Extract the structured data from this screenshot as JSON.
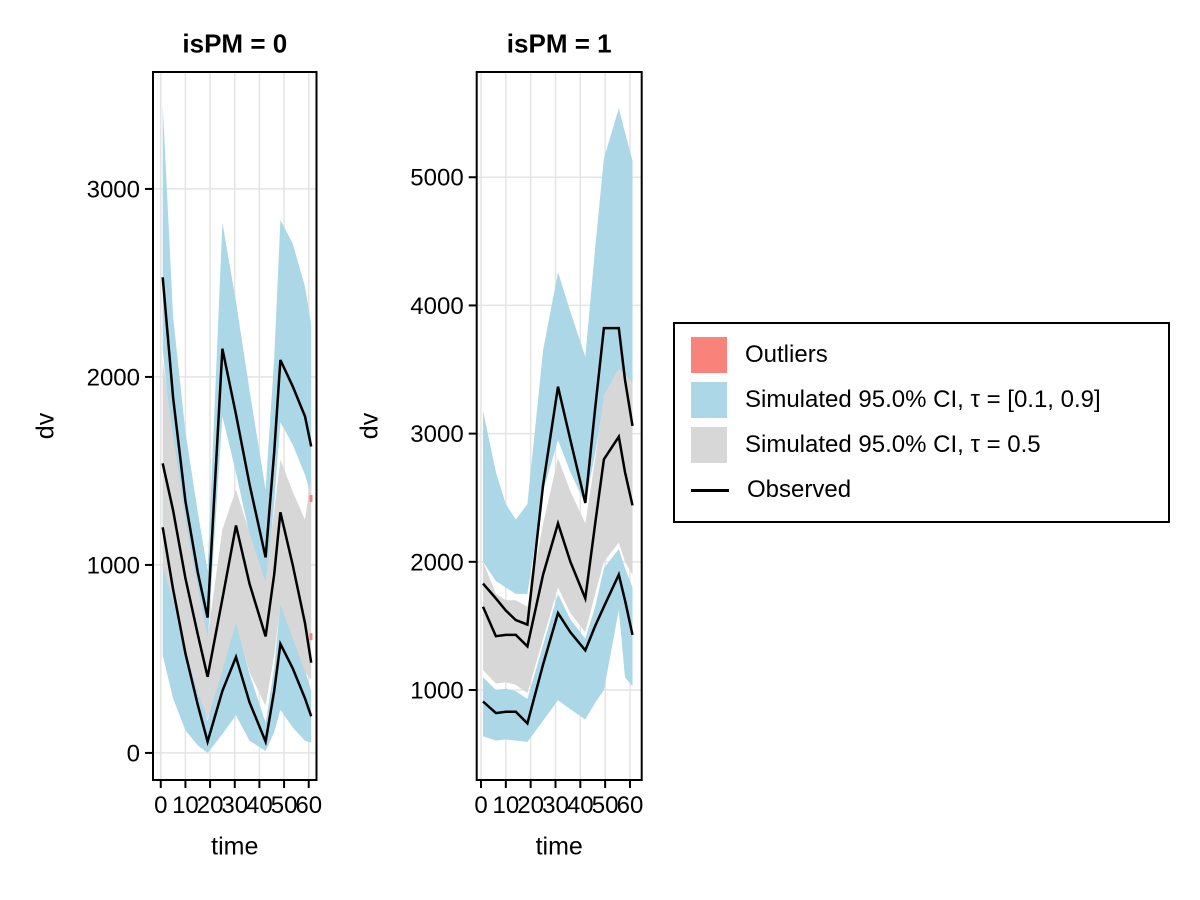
{
  "colors": {
    "outliers": "#F9837B",
    "ci_outer": "#ABD7E6",
    "ci_inner": "#D7D7D7",
    "observed": "#000000",
    "grid": "#E4E4E4",
    "panel_border": "#000000"
  },
  "x_axis": {
    "label": "time",
    "ticks": [
      0,
      10,
      20,
      30,
      40,
      50,
      60
    ]
  },
  "legend": {
    "items": [
      {
        "type": "rect",
        "color_key": "outliers",
        "label": "Outliers"
      },
      {
        "type": "rect",
        "color_key": "ci_outer",
        "label": "Simulated 95.0% CI, τ = [0.1, 0.9]"
      },
      {
        "type": "rect",
        "color_key": "ci_inner",
        "label": "Simulated 95.0% CI, τ = 0.5"
      },
      {
        "type": "line",
        "color_key": "observed",
        "label": "Observed"
      }
    ]
  },
  "chart_data": [
    {
      "type": "line",
      "title": "isPM = 0",
      "xlabel": "time",
      "ylabel": "dv",
      "x_ticks": [
        0,
        10,
        20,
        30,
        40,
        50,
        60
      ],
      "y_ticks": [
        0,
        1000,
        2000,
        3000
      ],
      "xlim": [
        -3.15,
        63.15
      ],
      "ylim": [
        -144,
        3622
      ],
      "grid": true,
      "time": [
        0.8,
        5,
        10,
        15,
        19,
        25,
        30.5,
        36,
        42.5,
        46,
        48.5,
        53.5,
        58.5,
        61
      ],
      "series": [
        {
          "name": "observed_p90",
          "values": [
            2530,
            1890,
            1340,
            960,
            720,
            2150,
            1800,
            1430,
            1040,
            1600,
            2090,
            1950,
            1790,
            1630
          ]
        },
        {
          "name": "observed_p50",
          "values": [
            1540,
            1290,
            930,
            630,
            405,
            820,
            1210,
            900,
            620,
            950,
            1280,
            1000,
            690,
            480
          ]
        },
        {
          "name": "observed_p10",
          "values": [
            1200,
            870,
            530,
            255,
            60,
            330,
            510,
            270,
            60,
            330,
            580,
            450,
            290,
            195
          ]
        }
      ],
      "bands": [
        {
          "name": "sim_ci_90pct",
          "color_key": "ci_outer",
          "hi": [
            3450,
            2320,
            1710,
            1280,
            970,
            2820,
            2400,
            1930,
            1400,
            2100,
            2835,
            2710,
            2480,
            2280
          ],
          "lo": [
            2150,
            1580,
            1130,
            800,
            590,
            1790,
            1490,
            1160,
            850,
            1330,
            1760,
            1640,
            1480,
            1370
          ]
        },
        {
          "name": "sim_ci_10pct",
          "color_key": "ci_outer",
          "hi": [
            1440,
            1050,
            670,
            370,
            170,
            490,
            700,
            420,
            160,
            450,
            800,
            630,
            440,
            330
          ],
          "lo": [
            520,
            290,
            120,
            40,
            0,
            100,
            200,
            65,
            10,
            110,
            230,
            135,
            65,
            55
          ]
        },
        {
          "name": "sim_ci_median",
          "color_key": "ci_inner",
          "hi": [
            2090,
            1690,
            1240,
            880,
            615,
            1190,
            1400,
            1170,
            910,
            1290,
            1560,
            1390,
            1240,
            1470
          ],
          "lo": [
            990,
            810,
            550,
            320,
            180,
            440,
            690,
            430,
            250,
            520,
            790,
            610,
            430,
            390
          ]
        }
      ],
      "outliers": [
        {
          "t": 60.9,
          "v_lo": 1335,
          "v_hi": 1372
        },
        {
          "t": 60.9,
          "v_lo": 600,
          "v_hi": 637
        }
      ]
    },
    {
      "type": "line",
      "title": "isPM = 1",
      "xlabel": "time",
      "ylabel": "dv",
      "x_ticks": [
        0,
        10,
        20,
        30,
        40,
        50,
        60
      ],
      "y_ticks": [
        1000,
        2000,
        3000,
        4000,
        5000
      ],
      "xlim": [
        -1.73,
        64.72
      ],
      "ylim": [
        298,
        5821
      ],
      "grid": true,
      "time": [
        0.8,
        6,
        10,
        14,
        18.7,
        25,
        31,
        36,
        42,
        46,
        49.5,
        55.5,
        58,
        61
      ],
      "series": [
        {
          "name": "observed_p90",
          "values": [
            1830,
            1715,
            1620,
            1545,
            1510,
            2600,
            3366,
            2950,
            2460,
            3200,
            3823,
            3823,
            3420,
            3060
          ]
        },
        {
          "name": "observed_p50",
          "values": [
            1650,
            1420,
            1430,
            1430,
            1340,
            1900,
            2300,
            2000,
            1715,
            2300,
            2800,
            2976,
            2700,
            2440
          ]
        },
        {
          "name": "observed_p10",
          "values": [
            910,
            820,
            830,
            830,
            740,
            1200,
            1600,
            1450,
            1310,
            1500,
            1650,
            1900,
            1700,
            1430
          ]
        }
      ],
      "bands": [
        {
          "name": "sim_ci_90pct",
          "color_key": "ci_outer",
          "hi": [
            3180,
            2700,
            2450,
            2330,
            2450,
            3650,
            4260,
            3950,
            3600,
            4450,
            5147,
            5537,
            5350,
            5130
          ],
          "lo": [
            2000,
            1850,
            1800,
            1750,
            1750,
            2550,
            2950,
            2700,
            2450,
            2850,
            3250,
            3450,
            3250,
            3050
          ]
        },
        {
          "name": "sim_ci_10pct",
          "color_key": "ci_outer",
          "hi": [
            1100,
            1000,
            1010,
            990,
            930,
            1350,
            1750,
            1550,
            1400,
            1650,
            1950,
            2100,
            1950,
            1800
          ],
          "lo": [
            640,
            605,
            615,
            605,
            595,
            760,
            920,
            850,
            770,
            900,
            1000,
            1625,
            1100,
            1030
          ]
        },
        {
          "name": "sim_ci_median",
          "color_key": "ci_inner",
          "hi": [
            2000,
            1750,
            1700,
            1700,
            1650,
            2300,
            2807,
            2550,
            2300,
            2800,
            3300,
            3509,
            3460,
            3400
          ],
          "lo": [
            1156,
            1050,
            1060,
            1040,
            977,
            1400,
            1800,
            1600,
            1450,
            1750,
            2000,
            2150,
            2000,
            1900
          ]
        }
      ],
      "outliers": []
    }
  ]
}
